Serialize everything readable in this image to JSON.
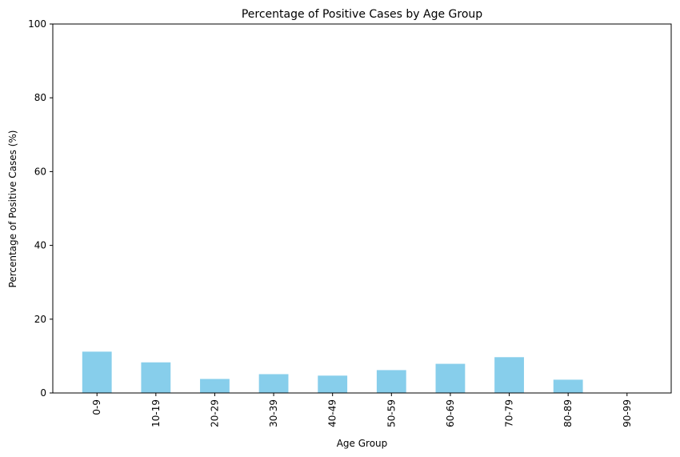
{
  "chart_data": {
    "type": "bar",
    "title": "Percentage of Positive Cases by Age Group",
    "xlabel": "Age Group",
    "ylabel": "Percentage of Positive Cases (%)",
    "categories": [
      "0-9",
      "10-19",
      "20-29",
      "30-39",
      "40-49",
      "50-59",
      "60-69",
      "70-79",
      "80-89",
      "90-99"
    ],
    "values": [
      11.2,
      8.3,
      3.8,
      5.1,
      4.7,
      6.2,
      7.9,
      9.7,
      3.6,
      0
    ],
    "ylim": [
      0,
      100
    ],
    "yticks": [
      0,
      20,
      40,
      60,
      80,
      100
    ],
    "grid": false,
    "legend": false,
    "bar_color": "#87ceeb"
  }
}
